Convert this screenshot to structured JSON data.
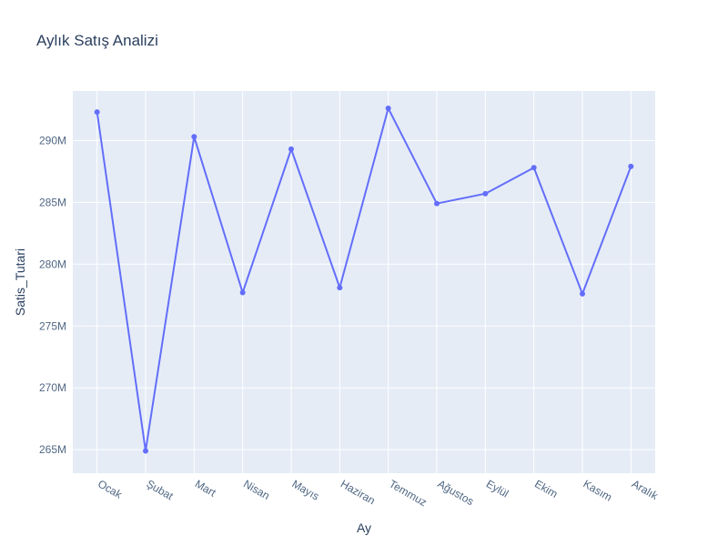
{
  "chart_data": {
    "type": "line",
    "title": "Aylık Satış Analizi",
    "xlabel": "Ay",
    "ylabel": "Satis_Tutari",
    "categories": [
      "Ocak",
      "Şubat",
      "Mart",
      "Nisan",
      "Mayıs",
      "Haziran",
      "Temmuz",
      "Ağustos",
      "Eylül",
      "Ekim",
      "Kasım",
      "Aralık"
    ],
    "series": [
      {
        "values": [
          292.3,
          264.9,
          290.3,
          277.7,
          289.3,
          278.1,
          292.6,
          284.9,
          285.7,
          287.8,
          277.6,
          287.9
        ]
      }
    ],
    "value_unit_suffix": "M",
    "ylim": [
      263.1,
      294.0
    ],
    "yticks": [
      265,
      270,
      275,
      280,
      285,
      290
    ],
    "ytick_labels": [
      "265M",
      "270M",
      "275M",
      "280M",
      "285M",
      "290M"
    ],
    "grid": true,
    "line_color": "#636efa",
    "plot_background": "#e5ecf6",
    "gridline_color": "#ffffff"
  }
}
